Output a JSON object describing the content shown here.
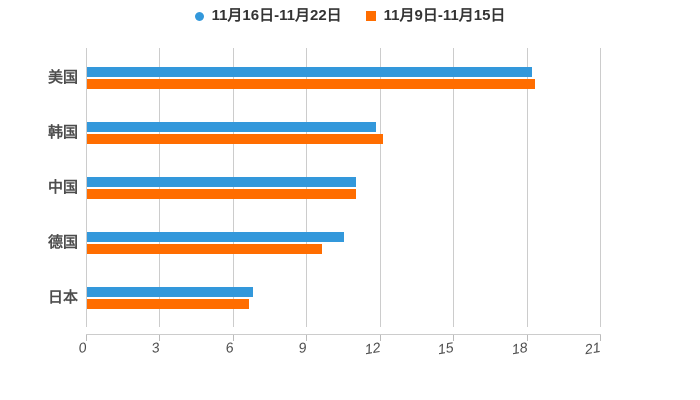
{
  "legend": {
    "items": [
      {
        "label": "11月16日-11月22日",
        "marker": "circle",
        "color": "#3398DB"
      },
      {
        "label": "11月9日-11月15日",
        "marker": "square",
        "color": "#FF6D00"
      }
    ]
  },
  "chart_data": {
    "type": "bar",
    "orientation": "horizontal",
    "title": "",
    "categories": [
      "美国",
      "韩国",
      "中国",
      "德国",
      "日本"
    ],
    "series": [
      {
        "name": "11月16日-11月22日",
        "color": "#3398DB",
        "values": [
          18.2,
          11.8,
          11.0,
          10.5,
          6.8
        ]
      },
      {
        "name": "11月9日-11月15日",
        "color": "#FF6D00",
        "values": [
          18.3,
          12.1,
          11.0,
          9.6,
          6.6
        ]
      }
    ],
    "xlim": [
      0,
      21
    ],
    "xticks": [
      0,
      3,
      6,
      9,
      12,
      15,
      18,
      21
    ],
    "grid": true,
    "legend_position": "top",
    "axis_color": "#cccccc",
    "tick_color": "#bbbbbb",
    "text_color": "#4d4d4d",
    "background_color": "#ffffff"
  }
}
